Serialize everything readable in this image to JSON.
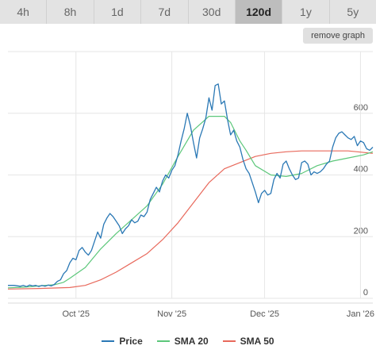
{
  "tabs": [
    {
      "label": "4h",
      "active": false
    },
    {
      "label": "8h",
      "active": false
    },
    {
      "label": "1d",
      "active": false
    },
    {
      "label": "7d",
      "active": false
    },
    {
      "label": "30d",
      "active": false
    },
    {
      "label": "120d",
      "active": true
    },
    {
      "label": "1y",
      "active": false
    },
    {
      "label": "5y",
      "active": false
    }
  ],
  "remove_graph_label": "remove graph",
  "chart_data": {
    "type": "line",
    "title": "",
    "xlabel": "",
    "ylabel": "",
    "x_ticks": [
      "Oct '25",
      "Nov '25",
      "Dec '25",
      "Jan '26"
    ],
    "x_tick_days": [
      22,
      53,
      83,
      114
    ],
    "y_ticks": [
      0,
      200,
      400,
      600
    ],
    "ylim": [
      0,
      800
    ],
    "xlim": [
      0,
      118
    ],
    "grid": true,
    "legend_position": "bottom",
    "series": [
      {
        "name": "Price",
        "color": "#2a78b5",
        "x": [
          0,
          2,
          4,
          5,
          6,
          7,
          8,
          9,
          10,
          11,
          12,
          13,
          14,
          15,
          16,
          17,
          18,
          19,
          20,
          21,
          22,
          23,
          24,
          25,
          26,
          27,
          28,
          29,
          30,
          31,
          32,
          33,
          34,
          35,
          36,
          37,
          38,
          39,
          40,
          41,
          42,
          43,
          44,
          45,
          46,
          47,
          48,
          49,
          50,
          51,
          52,
          53,
          54,
          55,
          56,
          57,
          58,
          59,
          60,
          61,
          62,
          63,
          64,
          65,
          66,
          67,
          68,
          69,
          70,
          71,
          72,
          73,
          74,
          75,
          76,
          77,
          78,
          79,
          80,
          81,
          82,
          83,
          84,
          85,
          86,
          87,
          88,
          89,
          90,
          91,
          92,
          93,
          94,
          95,
          96,
          97,
          98,
          99,
          100,
          101,
          102,
          103,
          104,
          105,
          106,
          107,
          108,
          109,
          110,
          111,
          112,
          113,
          114,
          115,
          116,
          117,
          118
        ],
        "values": [
          42,
          42,
          39,
          42,
          38,
          43,
          40,
          42,
          38,
          42,
          39,
          43,
          40,
          45,
          55,
          60,
          80,
          90,
          115,
          130,
          125,
          155,
          165,
          150,
          140,
          155,
          185,
          215,
          195,
          240,
          260,
          275,
          265,
          250,
          235,
          210,
          225,
          235,
          255,
          245,
          250,
          270,
          265,
          280,
          320,
          340,
          360,
          345,
          380,
          400,
          390,
          415,
          430,
          465,
          510,
          550,
          600,
          560,
          505,
          455,
          520,
          550,
          585,
          650,
          610,
          690,
          695,
          630,
          640,
          580,
          530,
          545,
          510,
          490,
          450,
          420,
          405,
          375,
          345,
          310,
          340,
          350,
          335,
          340,
          385,
          405,
          390,
          435,
          445,
          420,
          400,
          385,
          390,
          440,
          445,
          435,
          400,
          410,
          405,
          410,
          420,
          435,
          445,
          490,
          520,
          535,
          540,
          530,
          520,
          515,
          525,
          495,
          510,
          505,
          485,
          480,
          490
        ]
      },
      {
        "name": "SMA 20",
        "color": "#5cc77a",
        "x": [
          0,
          5,
          10,
          15,
          18,
          20,
          25,
          30,
          35,
          40,
          45,
          50,
          55,
          60,
          65,
          70,
          72,
          74,
          75,
          77,
          80,
          85,
          90,
          95,
          100,
          105,
          110,
          115,
          118
        ],
        "values": [
          34,
          36,
          40,
          44,
          52,
          65,
          100,
          160,
          210,
          255,
          300,
          370,
          460,
          545,
          590,
          590,
          570,
          530,
          510,
          480,
          430,
          400,
          395,
          405,
          430,
          445,
          455,
          465,
          475
        ]
      },
      {
        "name": "SMA 50",
        "color": "#e8695c",
        "x": [
          0,
          10,
          20,
          25,
          30,
          35,
          40,
          45,
          50,
          55,
          60,
          65,
          70,
          75,
          80,
          85,
          90,
          95,
          100,
          105,
          110,
          113,
          118
        ],
        "values": [
          30,
          32,
          35,
          42,
          60,
          85,
          115,
          145,
          190,
          245,
          310,
          375,
          420,
          440,
          460,
          470,
          475,
          478,
          478,
          478,
          478,
          475,
          470
        ]
      }
    ]
  }
}
